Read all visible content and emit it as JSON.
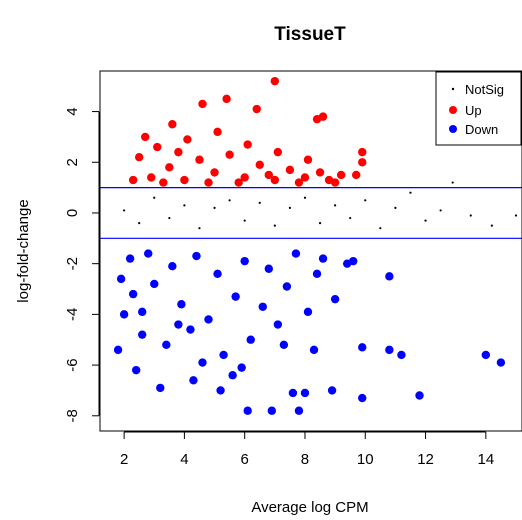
{
  "chart_data": {
    "type": "scatter",
    "title": "TissueT",
    "xlabel": "Average log CPM",
    "ylabel": "log-fold-change",
    "xlim": [
      1.2,
      15.2
    ],
    "ylim": [
      -8.6,
      5.6
    ],
    "x_ticks": [
      2,
      4,
      6,
      8,
      10,
      12,
      14
    ],
    "y_ticks": [
      -8,
      -6,
      -4,
      -2,
      0,
      2,
      4
    ],
    "reference_lines": [
      {
        "y": 1,
        "color": "#0000ff"
      },
      {
        "y": -1,
        "color": "#0000ff"
      }
    ],
    "legend": {
      "position": "top-right",
      "entries": [
        {
          "label": "NotSig",
          "color": "#000000"
        },
        {
          "label": "Up",
          "color": "#ff0000"
        },
        {
          "label": "Down",
          "color": "#0000ff"
        }
      ]
    },
    "series": [
      {
        "name": "NotSig",
        "color": "#000000",
        "points": [
          [
            2.0,
            0.1
          ],
          [
            2.5,
            -0.4
          ],
          [
            3.0,
            0.6
          ],
          [
            3.5,
            -0.2
          ],
          [
            4.0,
            0.3
          ],
          [
            4.5,
            -0.6
          ],
          [
            5.0,
            0.2
          ],
          [
            5.5,
            0.5
          ],
          [
            6.0,
            -0.3
          ],
          [
            6.5,
            0.4
          ],
          [
            7.0,
            -0.5
          ],
          [
            7.5,
            0.2
          ],
          [
            8.0,
            0.6
          ],
          [
            8.5,
            -0.4
          ],
          [
            9.0,
            0.3
          ],
          [
            9.5,
            -0.2
          ],
          [
            10.0,
            0.5
          ],
          [
            10.5,
            -0.6
          ],
          [
            11.0,
            0.2
          ],
          [
            11.5,
            0.8
          ],
          [
            12.0,
            -0.3
          ],
          [
            12.5,
            0.1
          ],
          [
            12.9,
            1.2
          ],
          [
            13.5,
            -0.1
          ],
          [
            14.2,
            -0.5
          ],
          [
            15.0,
            -0.1
          ]
        ]
      },
      {
        "name": "Up",
        "color": "#ff0000",
        "points": [
          [
            7.0,
            5.2
          ],
          [
            5.4,
            4.5
          ],
          [
            4.6,
            4.3
          ],
          [
            6.4,
            4.1
          ],
          [
            8.6,
            3.8
          ],
          [
            8.4,
            3.7
          ],
          [
            3.6,
            3.5
          ],
          [
            2.7,
            3.0
          ],
          [
            9.9,
            2.4
          ],
          [
            9.9,
            2.0
          ],
          [
            3.1,
            2.6
          ],
          [
            4.1,
            2.9
          ],
          [
            5.1,
            3.2
          ],
          [
            6.1,
            2.7
          ],
          [
            7.1,
            2.4
          ],
          [
            8.1,
            2.1
          ],
          [
            2.5,
            2.2
          ],
          [
            3.5,
            1.8
          ],
          [
            4.5,
            2.1
          ],
          [
            5.5,
            2.3
          ],
          [
            6.5,
            1.9
          ],
          [
            7.5,
            1.7
          ],
          [
            8.5,
            1.6
          ],
          [
            9.2,
            1.5
          ],
          [
            9.7,
            1.5
          ],
          [
            2.9,
            1.4
          ],
          [
            4.0,
            1.3
          ],
          [
            5.0,
            1.6
          ],
          [
            6.0,
            1.4
          ],
          [
            7.0,
            1.3
          ],
          [
            8.0,
            1.4
          ],
          [
            9.0,
            1.2
          ],
          [
            2.3,
            1.3
          ],
          [
            3.3,
            1.2
          ],
          [
            4.8,
            1.2
          ],
          [
            5.8,
            1.2
          ],
          [
            6.8,
            1.5
          ],
          [
            7.8,
            1.2
          ],
          [
            8.8,
            1.3
          ],
          [
            3.8,
            2.4
          ]
        ]
      },
      {
        "name": "Down",
        "color": "#0000ff",
        "points": [
          [
            6.1,
            -7.8
          ],
          [
            6.9,
            -7.8
          ],
          [
            7.8,
            -7.8
          ],
          [
            8.0,
            -7.1
          ],
          [
            7.6,
            -7.1
          ],
          [
            8.9,
            -7.0
          ],
          [
            9.9,
            -7.3
          ],
          [
            11.8,
            -7.2
          ],
          [
            14.5,
            -5.9
          ],
          [
            14.0,
            -5.6
          ],
          [
            11.2,
            -5.6
          ],
          [
            10.8,
            -5.4
          ],
          [
            9.9,
            -5.3
          ],
          [
            10.8,
            -2.5
          ],
          [
            1.8,
            -5.4
          ],
          [
            2.4,
            -6.2
          ],
          [
            3.2,
            -6.9
          ],
          [
            4.3,
            -6.6
          ],
          [
            5.2,
            -7.0
          ],
          [
            5.6,
            -6.4
          ],
          [
            2.0,
            -4.0
          ],
          [
            2.6,
            -4.8
          ],
          [
            3.4,
            -5.2
          ],
          [
            4.2,
            -4.6
          ],
          [
            5.3,
            -5.6
          ],
          [
            6.2,
            -5.0
          ],
          [
            7.1,
            -4.4
          ],
          [
            8.1,
            -3.9
          ],
          [
            9.0,
            -3.4
          ],
          [
            9.4,
            -2.0
          ],
          [
            1.9,
            -2.6
          ],
          [
            2.3,
            -3.2
          ],
          [
            3.0,
            -2.8
          ],
          [
            3.9,
            -3.6
          ],
          [
            4.8,
            -4.2
          ],
          [
            5.7,
            -3.3
          ],
          [
            6.6,
            -3.7
          ],
          [
            7.4,
            -2.9
          ],
          [
            8.4,
            -2.4
          ],
          [
            9.6,
            -1.9
          ],
          [
            2.2,
            -1.8
          ],
          [
            2.8,
            -1.6
          ],
          [
            3.6,
            -2.1
          ],
          [
            4.4,
            -1.7
          ],
          [
            5.1,
            -2.4
          ],
          [
            6.0,
            -1.9
          ],
          [
            6.8,
            -2.2
          ],
          [
            7.7,
            -1.6
          ],
          [
            8.6,
            -1.8
          ],
          [
            2.6,
            -3.9
          ],
          [
            3.8,
            -4.4
          ],
          [
            4.6,
            -5.9
          ],
          [
            5.9,
            -6.1
          ],
          [
            7.3,
            -5.2
          ],
          [
            8.3,
            -5.4
          ]
        ]
      }
    ]
  }
}
